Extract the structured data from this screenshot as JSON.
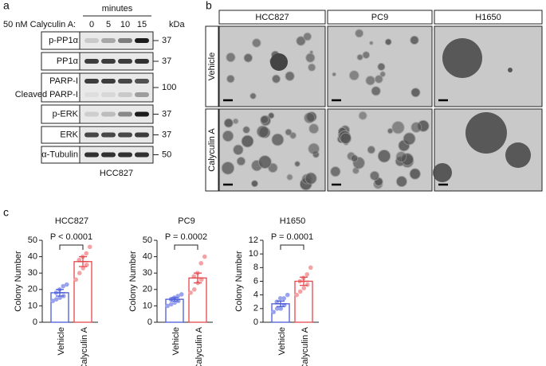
{
  "panel_a": {
    "letter": "a",
    "minutes": "minutes",
    "treatment": "50 nM Calyculin A:",
    "lanes": [
      "0",
      "5",
      "10",
      "15"
    ],
    "kda": "kDa",
    "rows": [
      {
        "labels": [
          "p-PP1α"
        ],
        "marker": "37"
      },
      {
        "labels": [
          "PP1α"
        ],
        "marker": "37"
      },
      {
        "labels": [
          "PARP-I",
          "Cleaved PARP-I"
        ],
        "marker": "100"
      },
      {
        "labels": [
          "p-ERK"
        ],
        "marker": "37"
      },
      {
        "labels": [
          "ERK"
        ],
        "marker": "37"
      },
      {
        "labels": [
          "α-Tubulin"
        ],
        "marker": "50"
      }
    ],
    "cell_line": "HCC827"
  },
  "panel_b": {
    "letter": "b",
    "columns": [
      "HCC827",
      "PC9",
      "H1650"
    ],
    "rows": [
      "Vehicle",
      "Calyculin A"
    ]
  },
  "panel_c": {
    "letter": "c"
  },
  "chart_data": [
    {
      "type": "bar",
      "title": "HCC827",
      "ylabel": "Colony Number",
      "categories": [
        "Vehicle",
        "Calyculin A"
      ],
      "values": [
        18,
        37
      ],
      "errors": [
        2,
        3
      ],
      "points": [
        [
          13,
          14,
          15,
          16,
          18,
          20,
          22,
          23
        ],
        [
          26,
          30,
          33,
          35,
          38,
          40,
          42,
          46
        ]
      ],
      "annotation": "P < 0.0001",
      "colors": [
        "#4a5bd6",
        "#e5484d"
      ],
      "point_colors": [
        "#9aa3ee",
        "#f3a3a5"
      ],
      "ylim": [
        0,
        50
      ],
      "yticks": [
        0,
        10,
        20,
        30,
        40,
        50
      ]
    },
    {
      "type": "bar",
      "title": "PC9",
      "ylabel": "Colony Number",
      "categories": [
        "Vehicle",
        "Calyculin A"
      ],
      "values": [
        14,
        27
      ],
      "errors": [
        1,
        3
      ],
      "points": [
        [
          10,
          11,
          12,
          13,
          14,
          15,
          16,
          17
        ],
        [
          18,
          20,
          24,
          26,
          28,
          30,
          36,
          40
        ]
      ],
      "annotation": "P = 0.0002",
      "colors": [
        "#4a5bd6",
        "#e5484d"
      ],
      "point_colors": [
        "#9aa3ee",
        "#f3a3a5"
      ],
      "ylim": [
        0,
        50
      ],
      "yticks": [
        0,
        10,
        20,
        30,
        40,
        50
      ]
    },
    {
      "type": "bar",
      "title": "H1650",
      "ylabel": "Colony Number",
      "categories": [
        "Vehicle",
        "Calyculin A"
      ],
      "values": [
        2.7,
        6
      ],
      "errors": [
        0.4,
        0.6
      ],
      "points": [
        [
          1.5,
          2,
          2,
          2.5,
          3,
          3.5,
          3.5,
          4
        ],
        [
          4,
          4.5,
          5,
          5.5,
          6,
          6.5,
          7,
          8
        ]
      ],
      "annotation": "P = 0.0001",
      "colors": [
        "#4a5bd6",
        "#e5484d"
      ],
      "point_colors": [
        "#9aa3ee",
        "#f3a3a5"
      ],
      "ylim": [
        0,
        12
      ],
      "yticks": [
        0,
        2,
        4,
        6,
        8,
        10,
        12
      ]
    }
  ]
}
